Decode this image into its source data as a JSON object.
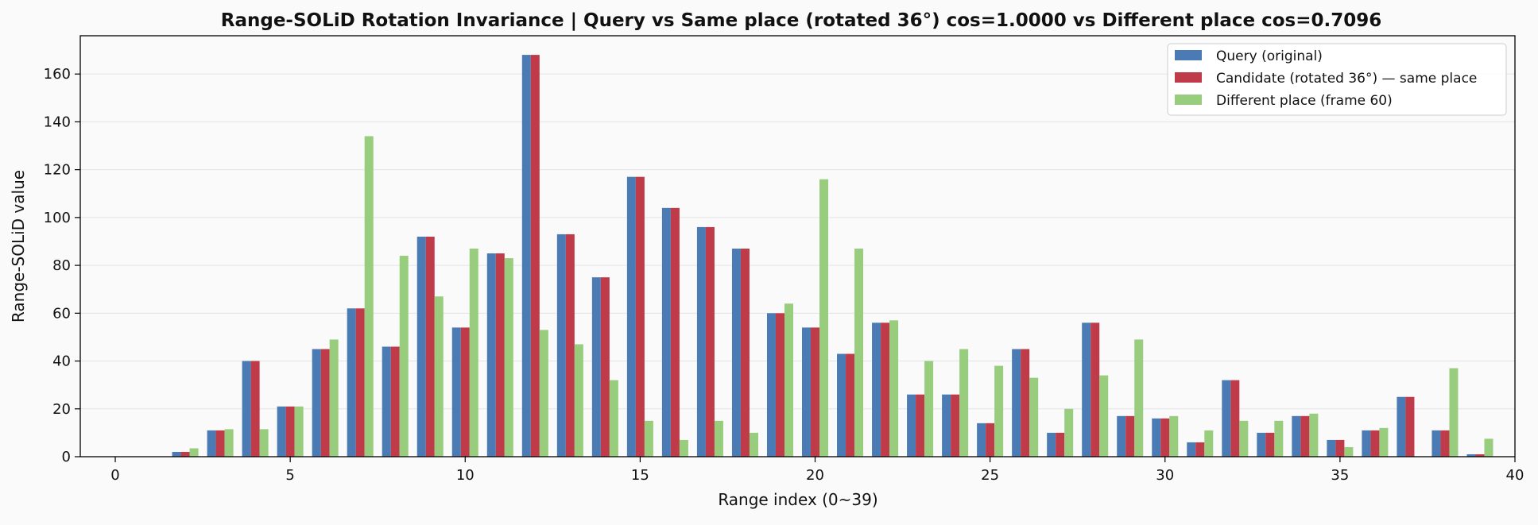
{
  "chart_data": {
    "type": "bar",
    "title": "Range-SOLiD Rotation Invariance | Query vs Same place (rotated 36°) cos=1.0000  vs  Different place cos=0.7096",
    "xlabel": "Range index (0~39)",
    "ylabel": "Range-SOLiD value",
    "xlim": [
      -1,
      40
    ],
    "ylim": [
      0,
      176
    ],
    "xticks": [
      0,
      5,
      10,
      15,
      20,
      25,
      30,
      35,
      40
    ],
    "yticks": [
      0,
      20,
      40,
      60,
      80,
      100,
      120,
      140,
      160
    ],
    "grid": "horizontal",
    "legend_position": "top-right",
    "x": [
      0,
      1,
      2,
      3,
      4,
      5,
      6,
      7,
      8,
      9,
      10,
      11,
      12,
      13,
      14,
      15,
      16,
      17,
      18,
      19,
      20,
      21,
      22,
      23,
      24,
      25,
      26,
      27,
      28,
      29,
      30,
      31,
      32,
      33,
      34,
      35,
      36,
      37,
      38,
      39
    ],
    "series": [
      {
        "name": "Query (original)",
        "color": "#4a7bb5",
        "values": [
          0,
          0,
          2,
          11,
          40,
          21,
          45,
          62,
          46,
          92,
          54,
          85,
          168,
          93,
          75,
          117,
          104,
          96,
          87,
          60,
          54,
          43,
          56,
          26,
          26,
          14,
          45,
          10,
          56,
          17,
          16,
          6,
          32,
          10,
          17,
          7,
          11,
          25,
          11,
          1
        ]
      },
      {
        "name": "Candidate (rotated 36°) — same place",
        "color": "#bf3b4a",
        "values": [
          0,
          0,
          2,
          11,
          40,
          21,
          45,
          62,
          46,
          92,
          54,
          85,
          168,
          93,
          75,
          117,
          104,
          96,
          87,
          60,
          54,
          43,
          56,
          26,
          26,
          14,
          45,
          10,
          56,
          17,
          16,
          6,
          32,
          10,
          17,
          7,
          11,
          25,
          11,
          1
        ]
      },
      {
        "name": "Different place (frame 60)",
        "color": "#98cd7d",
        "values": [
          0,
          0,
          3.5,
          11.5,
          11.5,
          21,
          49,
          134,
          84,
          67,
          87,
          83,
          53,
          47,
          32,
          15,
          7,
          15,
          10,
          64,
          116,
          87,
          57,
          40,
          45,
          38,
          33,
          20,
          34,
          49,
          17,
          11,
          15,
          15,
          18,
          4,
          12,
          0,
          37,
          7.5
        ]
      }
    ]
  }
}
